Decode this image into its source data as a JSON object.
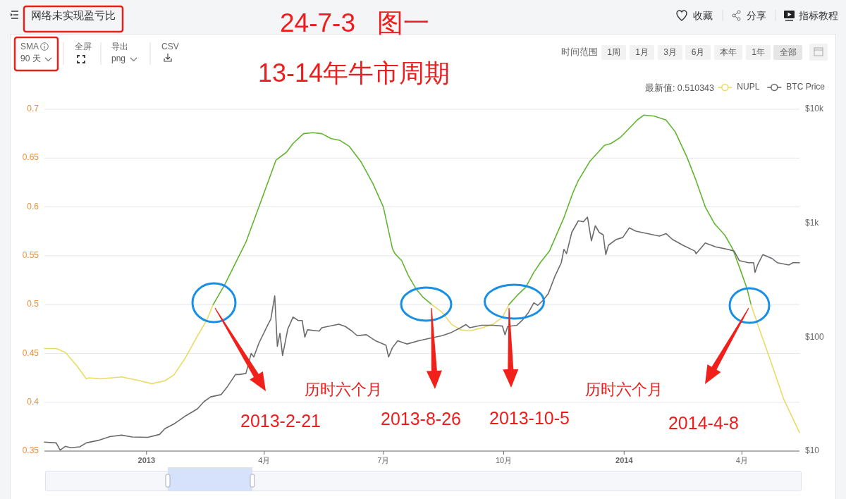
{
  "chart_data": {
    "type": "line",
    "title": "网络未实现盈亏比",
    "xlim": [
      "2012-10-15",
      "2014-05-15"
    ],
    "xticks": [
      {
        "value": "2013-01-01",
        "label": "2013"
      },
      {
        "value": "2013-04-01",
        "label": "4月"
      },
      {
        "value": "2013-07-01",
        "label": "7月"
      },
      {
        "value": "2013-10-01",
        "label": "10月"
      },
      {
        "value": "2014-01-01",
        "label": "2014"
      },
      {
        "value": "2014-04-01",
        "label": "4月"
      }
    ],
    "ylim": [
      0.35,
      0.7
    ],
    "yticks": [
      0.35,
      0.4,
      0.45,
      0.5,
      0.55,
      0.6,
      0.65,
      0.7
    ],
    "y2lim": [
      10,
      10000
    ],
    "y2ticks": [
      {
        "value": 10,
        "label": "$10"
      },
      {
        "value": 100,
        "label": "$100"
      },
      {
        "value": 1000,
        "label": "$1k"
      },
      {
        "value": 10000,
        "label": "$10k"
      }
    ],
    "log": "y2",
    "grid": "y",
    "legend": "top right",
    "series": [
      {
        "name": "NUPL",
        "color": "#e9db66",
        "x": [
          "2012-10-15",
          "2012-10-24",
          "2012-10-31",
          "2012-11-09",
          "2012-11-16",
          "2012-11-18",
          "2012-11-27",
          "2012-12-13",
          "2012-12-27",
          "2013-01-05",
          "2013-01-15",
          "2013-01-22",
          "2013-01-31",
          "2013-02-09",
          "2013-02-16",
          "2013-02-21"
        ],
        "values": [
          0.455,
          0.455,
          0.451,
          0.437,
          0.424,
          0.425,
          0.424,
          0.426,
          0.422,
          0.419,
          0.422,
          0.428,
          0.446,
          0.468,
          0.484,
          0.5
        ]
      },
      {
        "color": "#62b530",
        "x": [
          "2013-02-21",
          "2013-03-02",
          "2013-03-18",
          "2013-03-29",
          "2013-04-10",
          "2013-04-16",
          "2013-04-18",
          "2013-04-23",
          "2013-05-01",
          "2013-05-08",
          "2013-05-15",
          "2013-05-22",
          "2013-05-29",
          "2013-06-05",
          "2013-06-14",
          "2013-06-23",
          "2013-07-01",
          "2013-07-08",
          "2013-07-10",
          "2013-07-15",
          "2013-07-20",
          "2013-07-26",
          "2013-07-31",
          "2013-08-07"
        ],
        "values": [
          0.5,
          0.521,
          0.564,
          0.604,
          0.648,
          0.654,
          0.656,
          0.665,
          0.675,
          0.676,
          0.675,
          0.67,
          0.668,
          0.662,
          0.646,
          0.624,
          0.6,
          0.557,
          0.552,
          0.545,
          0.53,
          0.516,
          0.508,
          0.5
        ]
      },
      {
        "color": "#e9db66",
        "x": [
          "2013-08-07",
          "2013-08-15",
          "2013-08-22",
          "2013-08-29",
          "2013-09-05",
          "2013-09-14",
          "2013-09-23",
          "2013-09-30",
          "2013-10-05"
        ],
        "values": [
          0.5,
          0.492,
          0.48,
          0.474,
          0.473,
          0.476,
          0.48,
          0.487,
          0.5
        ]
      },
      {
        "color": "#62b530",
        "x": [
          "2013-10-05",
          "2013-10-11",
          "2013-10-18",
          "2013-10-24",
          "2013-10-29",
          "2013-11-05",
          "2013-11-16",
          "2013-11-23",
          "2013-11-27",
          "2013-12-06",
          "2013-12-17",
          "2013-12-22",
          "2013-12-29",
          "2014-01-06",
          "2014-01-11",
          "2014-01-16",
          "2014-01-24",
          "2014-02-02",
          "2014-02-09",
          "2014-02-18",
          "2014-02-25",
          "2014-03-04",
          "2014-03-11",
          "2014-03-19",
          "2014-03-25",
          "2014-03-31",
          "2014-04-05",
          "2014-04-08"
        ],
        "values": [
          0.5,
          0.509,
          0.518,
          0.533,
          0.543,
          0.555,
          0.589,
          0.615,
          0.627,
          0.647,
          0.663,
          0.665,
          0.671,
          0.682,
          0.689,
          0.694,
          0.693,
          0.689,
          0.677,
          0.651,
          0.627,
          0.6,
          0.583,
          0.571,
          0.557,
          0.535,
          0.516,
          0.5
        ]
      },
      {
        "color": "#e9db66",
        "x": [
          "2014-04-08",
          "2014-04-13",
          "2014-04-22",
          "2014-05-03",
          "2014-05-15"
        ],
        "values": [
          0.5,
          0.48,
          0.446,
          0.403,
          0.369
        ]
      },
      {
        "name": "BTC Price",
        "color": "#6b6b6b",
        "axis": "y2",
        "x": [
          "2012-10-15",
          "2012-10-24",
          "2012-10-27",
          "2012-10-31",
          "2012-11-04",
          "2012-11-11",
          "2012-11-16",
          "2012-11-25",
          "2012-12-04",
          "2012-12-13",
          "2012-12-21",
          "2013-01-02",
          "2013-01-11",
          "2013-01-15",
          "2013-01-22",
          "2013-01-31",
          "2013-02-09",
          "2013-02-14",
          "2013-02-19",
          "2013-02-27",
          "2013-03-04",
          "2013-03-10",
          "2013-03-13",
          "2013-03-18",
          "2013-03-22",
          "2013-03-24",
          "2013-03-28",
          "2013-04-04",
          "2013-04-06",
          "2013-04-09",
          "2013-04-11",
          "2013-04-13",
          "2013-04-15",
          "2013-04-19",
          "2013-04-23",
          "2013-04-27",
          "2013-04-30",
          "2013-05-02",
          "2013-05-04",
          "2013-05-13",
          "2013-05-15",
          "2013-05-24",
          "2013-05-28",
          "2013-06-02",
          "2013-06-07",
          "2013-06-11",
          "2013-06-18",
          "2013-06-25",
          "2013-07-03",
          "2013-07-05",
          "2013-07-08",
          "2013-07-12",
          "2013-07-19",
          "2013-07-28",
          "2013-08-06",
          "2013-08-15",
          "2013-08-22",
          "2013-08-29",
          "2013-09-02",
          "2013-09-05",
          "2013-09-14",
          "2013-09-23",
          "2013-09-30",
          "2013-10-02",
          "2013-10-04",
          "2013-10-11",
          "2013-10-15",
          "2013-10-20",
          "2013-10-24",
          "2013-10-27",
          "2013-10-31",
          "2013-11-04",
          "2013-11-09",
          "2013-11-14",
          "2013-11-16",
          "2013-11-18",
          "2013-11-22",
          "2013-11-27",
          "2013-12-01",
          "2013-12-04",
          "2013-12-07",
          "2013-12-10",
          "2013-12-13",
          "2013-12-16",
          "2013-12-18",
          "2013-12-20",
          "2013-12-26",
          "2013-12-31",
          "2014-01-05",
          "2014-01-10",
          "2014-01-19",
          "2014-01-28",
          "2014-02-02",
          "2014-02-07",
          "2014-02-15",
          "2014-02-24",
          "2014-02-25",
          "2014-03-04",
          "2014-03-12",
          "2014-03-21",
          "2014-03-26",
          "2014-03-30",
          "2014-04-06",
          "2014-04-10",
          "2014-04-11",
          "2014-04-13",
          "2014-04-17",
          "2014-04-24",
          "2014-04-28",
          "2014-05-07",
          "2014-05-10",
          "2014-05-15"
        ],
        "values": [
          12,
          11.8,
          10.2,
          11,
          10.7,
          10.9,
          11.8,
          12.4,
          13.4,
          13.8,
          13.3,
          13.2,
          14,
          15.7,
          17.3,
          20.4,
          23.5,
          27.2,
          29.9,
          31.3,
          37,
          47,
          47,
          48,
          72,
          67,
          89,
          130,
          143,
          230,
          83,
          108,
          69,
          118,
          150,
          140,
          140,
          100,
          116,
          113,
          121,
          127,
          130,
          124,
          113,
          103,
          105,
          93,
          85,
          67,
          81,
          93,
          87,
          93,
          98,
          103,
          110,
          121,
          129,
          121,
          127,
          127,
          125,
          105,
          124,
          127,
          140,
          165,
          200,
          190,
          210,
          240,
          340,
          450,
          590,
          540,
          830,
          1050,
          1030,
          1130,
          700,
          950,
          830,
          790,
          530,
          640,
          720,
          750,
          910,
          850,
          810,
          770,
          810,
          720,
          640,
          570,
          540,
          670,
          620,
          590,
          570,
          470,
          450,
          450,
          370,
          430,
          530,
          490,
          450,
          430,
          450,
          450
        ]
      }
    ],
    "annotations": [
      "24-7-3   图一",
      "13-14年牛市周期",
      "历时六个月",
      "历时六个月",
      "2013-2-21",
      "2013-8-26",
      "2013-10-5",
      "2014-4-8",
      "收藏",
      "分享",
      "指标教程",
      "SMA",
      "90 天",
      "全屏",
      "导出",
      "png",
      "CSV",
      "时间范围",
      "1周",
      "1月",
      "3月",
      "6月",
      "本年",
      "1年",
      "全部",
      "最新值: 0.510343"
    ]
  }
}
